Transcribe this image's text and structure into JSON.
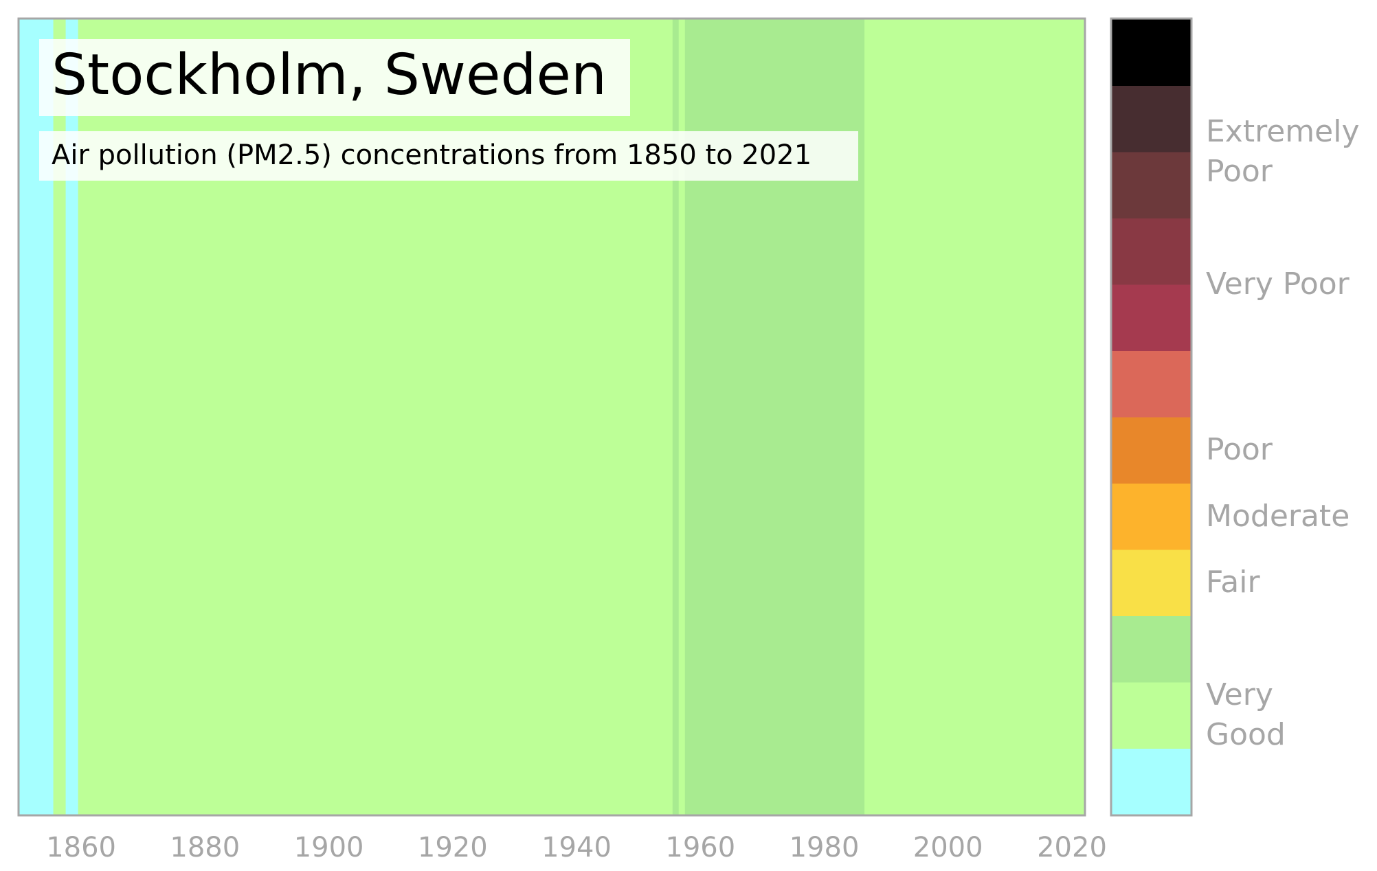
{
  "chart_data": {
    "type": "heatmap",
    "title": "Stockholm, Sweden",
    "subtitle": "Air pollution (PM2.5) concentrations from 1850 to 2021",
    "x_ticks": [
      "1860",
      "1880",
      "1900",
      "1920",
      "1940",
      "1960",
      "1980",
      "2000",
      "2020"
    ],
    "x_tick_values": [
      1860,
      1880,
      1900,
      1920,
      1940,
      1960,
      1980,
      2000,
      2020
    ],
    "xlim": [
      1850,
      2022
    ],
    "categories": [
      "Very Good",
      "Very Good",
      "Fair",
      "Fair",
      "Moderate",
      "Poor",
      "Poor",
      "Very Poor",
      "Very Poor",
      "Extremely Poor",
      "Extremely Poor",
      "Extremely Poor"
    ],
    "category_colors": [
      "#a6ffff",
      "#bdff97",
      "#a8eb90",
      "#f9e047",
      "#fdb32c",
      "#e8872a",
      "#db6859",
      "#a53a4f",
      "#893944",
      "#6c393b",
      "#472d30",
      "#000000"
    ],
    "legend_labels": [
      {
        "text": "Very Good",
        "level": 1
      },
      {
        "text": "Fair",
        "level": 3
      },
      {
        "text": "Moderate",
        "level": 4
      },
      {
        "text": "Poor",
        "level": 5
      },
      {
        "text": "Very Poor",
        "level": 7.5
      },
      {
        "text": "Extremely Poor",
        "level": 9.5
      }
    ],
    "stripes": [
      {
        "start": 1850,
        "end": 1855.5,
        "level": 0
      },
      {
        "start": 1855.5,
        "end": 1857.5,
        "level": 1
      },
      {
        "start": 1857.5,
        "end": 1859.5,
        "level": 0
      },
      {
        "start": 1859.5,
        "end": 1955.5,
        "level": 1
      },
      {
        "start": 1955.5,
        "end": 1956.5,
        "level": 2
      },
      {
        "start": 1956.5,
        "end": 1957.5,
        "level": 1
      },
      {
        "start": 1957.5,
        "end": 1986.5,
        "level": 2
      },
      {
        "start": 1986.5,
        "end": 2022,
        "level": 1
      }
    ],
    "frame_color": "#a6a6a6",
    "text_color": "#a6a6a6"
  }
}
